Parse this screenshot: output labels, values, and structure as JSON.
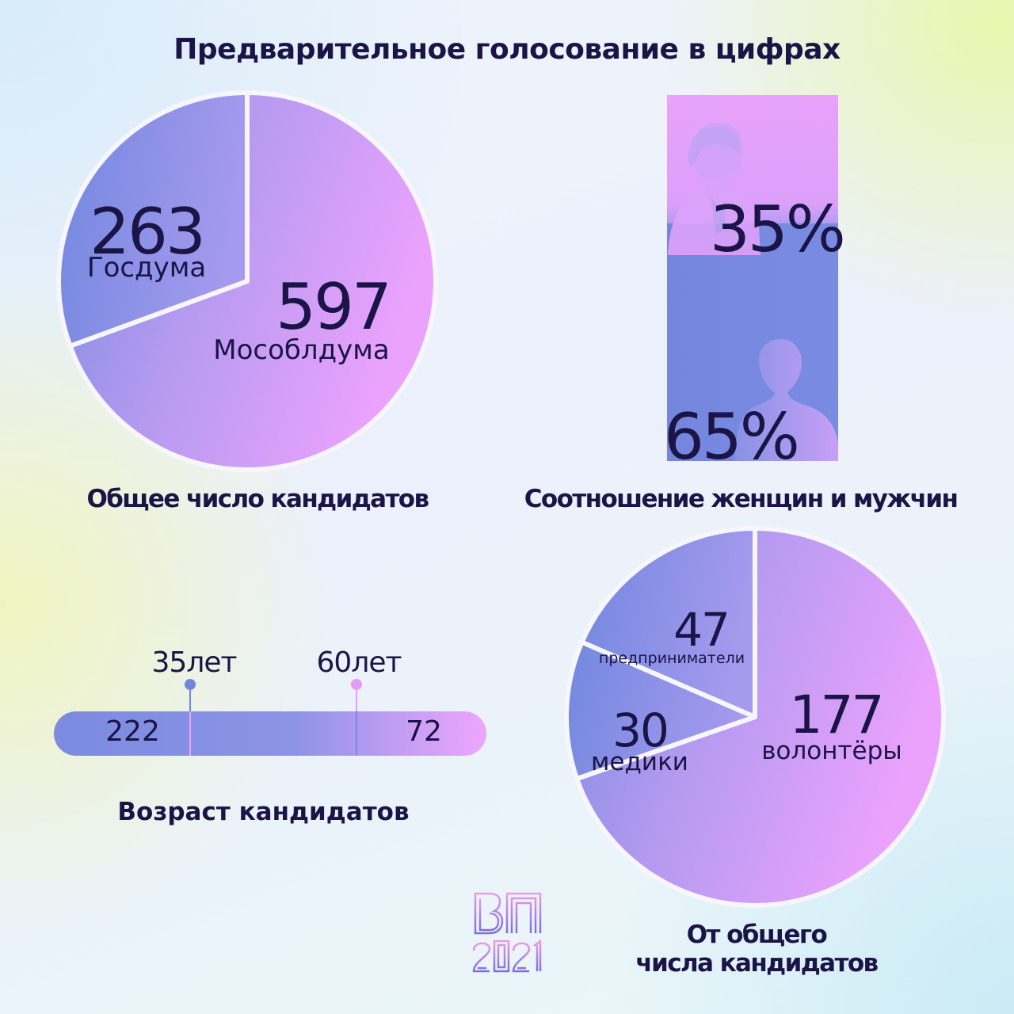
{
  "title": "Предварительное голосование в цифрах",
  "chart_data": [
    {
      "type": "pie",
      "title": "Общее число кандидатов",
      "slices": [
        {
          "label": "Госдума",
          "value": 263
        },
        {
          "label": "Мособлдума",
          "value": 597
        }
      ]
    },
    {
      "type": "bar",
      "title": "Соотношение женщин и мужчин",
      "categories": [
        "женщины",
        "мужчины"
      ],
      "values": [
        35,
        65
      ],
      "value_labels": [
        "35%",
        "65%"
      ],
      "unit": "%"
    },
    {
      "type": "bar",
      "title": "Возраст кандидатов",
      "markers": [
        {
          "age": 35,
          "label": "35лет"
        },
        {
          "age": 60,
          "label": "60лет"
        }
      ],
      "segments": [
        {
          "label": "222",
          "value": 222
        },
        {
          "label": "72",
          "value": 72
        }
      ]
    },
    {
      "type": "pie",
      "title": "От общего числа кандидатов",
      "slices": [
        {
          "label": "волонтёры",
          "value": 177
        },
        {
          "label": "предприниматели",
          "value": 47
        },
        {
          "label": "медики",
          "value": 30
        }
      ]
    }
  ],
  "captions": {
    "total": "Общее число кандидатов",
    "gender": "Соотношение женщин и мужчин",
    "age": "Возраст кандидатов",
    "groups_line1": "От общего",
    "groups_line2": "числа кандидатов"
  },
  "labels": {
    "pie1_small_value": "263",
    "pie1_small_label": "Госдума",
    "pie1_big_value": "597",
    "pie1_big_label": "Мособлдума",
    "women_pct": "35%",
    "men_pct": "65%",
    "age_marker_1": "35лет",
    "age_marker_2": "60лет",
    "age_under": "222",
    "age_over": "72",
    "g_vol_value": "177",
    "g_vol_label": "волонтёры",
    "g_ent_value": "47",
    "g_ent_label": "предприниматели",
    "g_med_value": "30",
    "g_med_label": "медики"
  },
  "logo": {
    "line1": "ВП",
    "line2": "2021"
  },
  "colors": {
    "pink": "#eaa2fd",
    "blue": "#7186df",
    "ink": "#1b1446"
  }
}
